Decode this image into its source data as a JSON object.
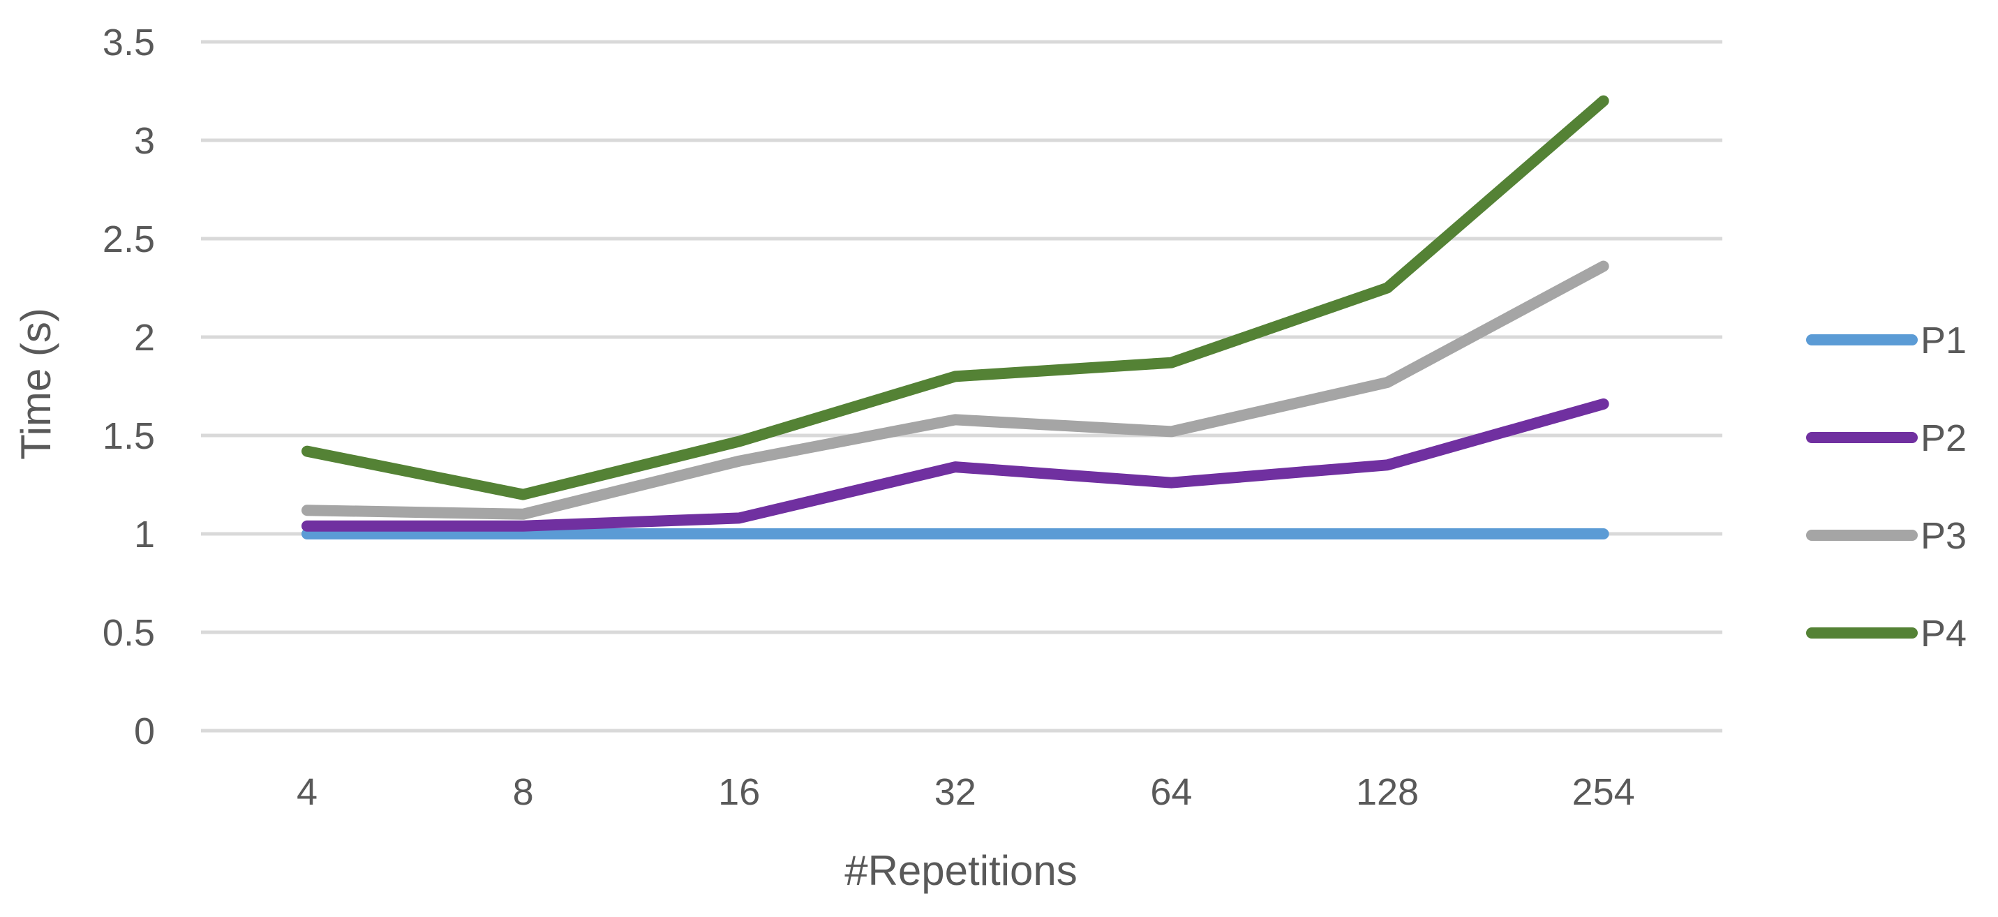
{
  "chart_data": {
    "type": "line",
    "title": "",
    "xlabel": "#Repetitions",
    "ylabel": "Time (s)",
    "categories": [
      "4",
      "8",
      "16",
      "32",
      "64",
      "128",
      "254"
    ],
    "ylim": [
      0,
      3.5
    ],
    "yticks": [
      "0",
      "0.5",
      "1",
      "1.5",
      "2",
      "2.5",
      "3",
      "3.5"
    ],
    "grid": true,
    "legend_position": "right",
    "series": [
      {
        "name": "P1",
        "color": "#5b9bd5",
        "values": [
          1.0,
          1.0,
          1.0,
          1.0,
          1.0,
          1.0,
          1.0
        ]
      },
      {
        "name": "P2",
        "color": "#7030a0",
        "values": [
          1.04,
          1.04,
          1.08,
          1.34,
          1.26,
          1.35,
          1.66
        ]
      },
      {
        "name": "P3",
        "color": "#a5a5a5",
        "values": [
          1.12,
          1.1,
          1.37,
          1.58,
          1.52,
          1.77,
          2.36
        ]
      },
      {
        "name": "P4",
        "color": "#548235",
        "values": [
          1.42,
          1.2,
          1.47,
          1.8,
          1.87,
          2.25,
          3.2
        ]
      }
    ]
  }
}
